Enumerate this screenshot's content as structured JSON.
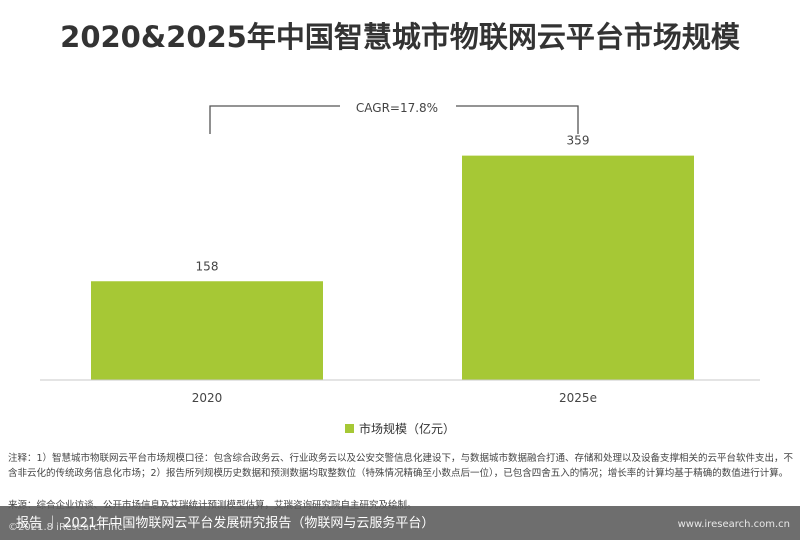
{
  "chart_data": {
    "type": "bar",
    "title": "2020&2025年中国智慧城市物联网云平台市场规模",
    "categories": [
      "2020",
      "2025e"
    ],
    "series": [
      {
        "name": "市场规模（亿元）",
        "values": [
          158,
          359
        ]
      }
    ],
    "value_labels": [
      "158",
      "359"
    ],
    "ylim": [
      0,
      400
    ],
    "grid": false,
    "legend_position": "bottom",
    "annotation": "CAGR=17.8%",
    "bar_color": "#a6c835"
  },
  "note": "注释：1）智慧城市物联网云平台市场规模口径：包含综合政务云、行业政务云以及公安交警信息化建设下，与数据城市数据融合打通、存储和处理以及设备支撑相关的云平台软件支出，不含非云化的传统政务信息化市场；2）报告所列规模历史数据和预测数据均取整数位（特殊情况精确至小数点后一位），已包含四舍五入的情况；增长率的计算均基于精确的数值进行计算。",
  "source": "来源：综合企业访谈、公开市场信息及艾瑞统计预测模型估算，艾瑞咨询研究院自主研究及绘制。",
  "footer": {
    "text": "报告 ｜ 2021年中国物联网云平台发展研究报告（物联网与云服务平台）",
    "copyright": "©2021.8 iResearch Inc.",
    "url": "www.iresearch.com.cn"
  }
}
